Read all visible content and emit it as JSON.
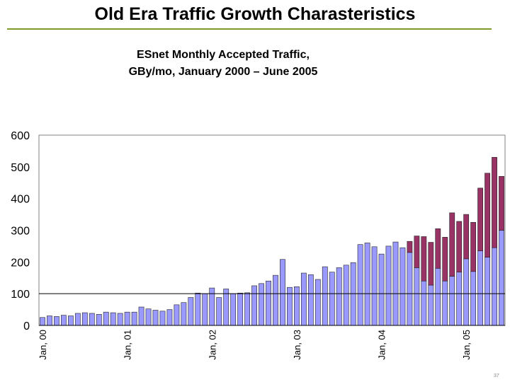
{
  "slide": {
    "title": "Old Era Traffic Growth Charasteristics",
    "slide_number": "37"
  },
  "chart_data": {
    "type": "bar",
    "title_line1": "ESnet Monthly Accepted Traffic,",
    "title_line2": "GBy/mo, January 2000 – June 2005",
    "xlabel": "",
    "ylabel": "",
    "ylim": [
      0,
      600
    ],
    "yticks": [
      0,
      100,
      200,
      300,
      400,
      500,
      600
    ],
    "reference_line": 100,
    "grid": false,
    "legend": "none",
    "tick_labels": [
      {
        "index": 0,
        "label": "Jan, 00"
      },
      {
        "index": 12,
        "label": "Jan, 01"
      },
      {
        "index": 24,
        "label": "Jan, 02"
      },
      {
        "index": 36,
        "label": "Jan, 03"
      },
      {
        "index": 48,
        "label": "Jan, 04"
      },
      {
        "index": 60,
        "label": "Jan, 05"
      }
    ],
    "series": [
      {
        "color": "#9999ff",
        "values": [
          25,
          30,
          28,
          32,
          30,
          38,
          40,
          38,
          35,
          42,
          40,
          38,
          42,
          42,
          58,
          52,
          48,
          45,
          50,
          65,
          72,
          88,
          102,
          100,
          118,
          88,
          115,
          100,
          102,
          103,
          125,
          132,
          140,
          158,
          208,
          120,
          122,
          165,
          160,
          145,
          185,
          168,
          182,
          190,
          198,
          255,
          260,
          248,
          225,
          250,
          263,
          245,
          230,
          182,
          140,
          127,
          180,
          140,
          155,
          168,
          210,
          170,
          235,
          215,
          245,
          300
        ]
      },
      {
        "color": "#993366",
        "values": [
          0,
          0,
          0,
          0,
          0,
          0,
          0,
          0,
          0,
          0,
          0,
          0,
          0,
          0,
          0,
          0,
          0,
          0,
          0,
          0,
          0,
          0,
          0,
          0,
          0,
          0,
          0,
          0,
          0,
          0,
          0,
          0,
          0,
          0,
          0,
          0,
          0,
          0,
          0,
          0,
          0,
          0,
          0,
          0,
          0,
          0,
          0,
          0,
          0,
          0,
          0,
          0,
          35,
          100,
          140,
          135,
          125,
          138,
          200,
          160,
          140,
          155,
          198,
          265,
          285,
          170
        ]
      }
    ]
  }
}
